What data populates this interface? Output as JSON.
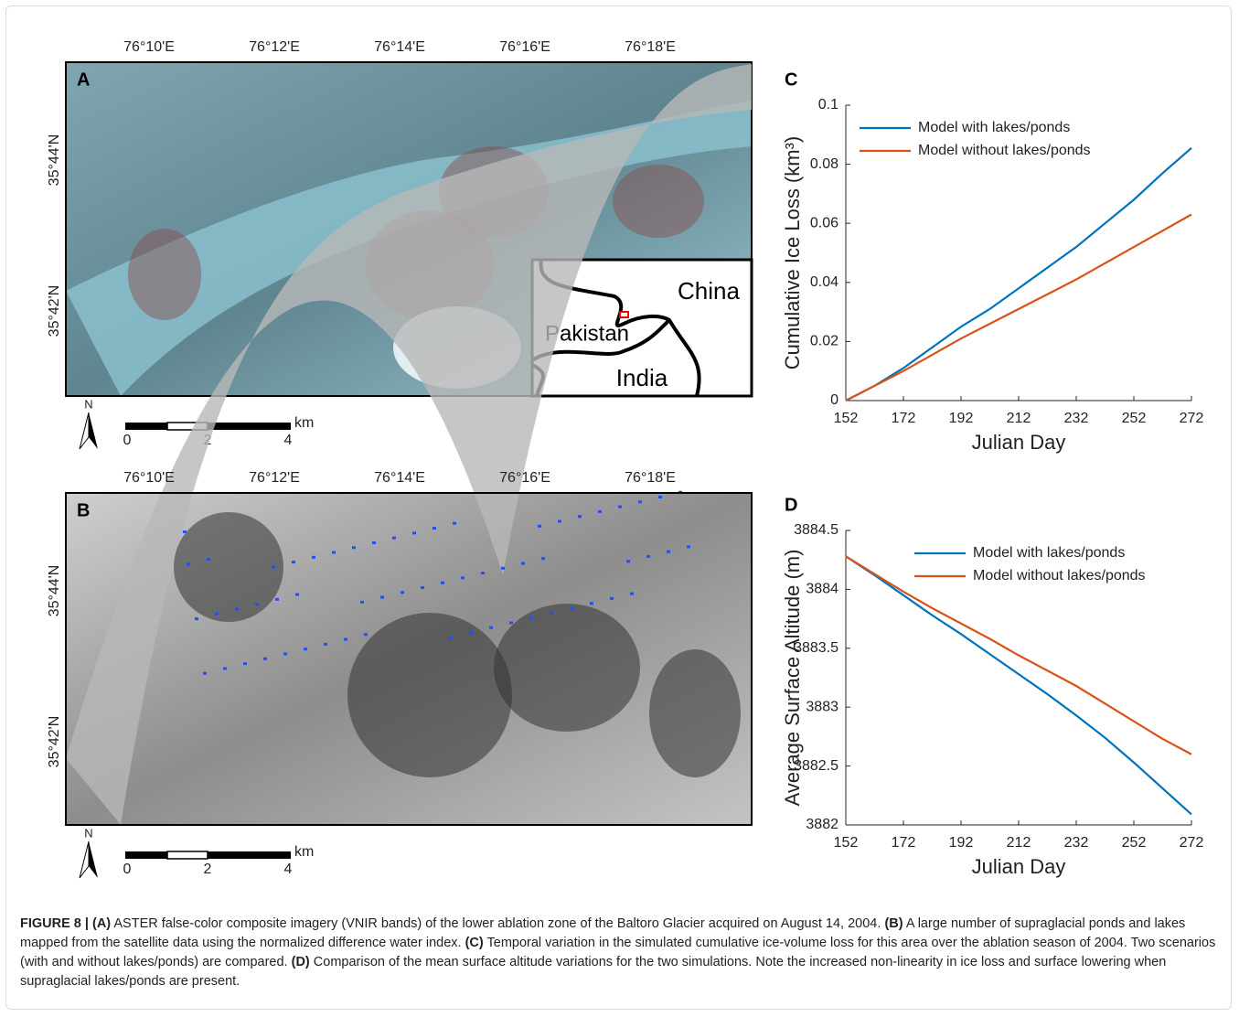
{
  "maps": [
    {
      "panel": "A",
      "lon_labels": [
        "76°10'E",
        "76°12'E",
        "76°14'E",
        "76°16'E",
        "76°18'E"
      ],
      "lat_labels": [
        "35°44'N",
        "35°42'N"
      ],
      "north": "N",
      "scale_labels": [
        "0",
        "2",
        "4"
      ],
      "scale_unit": "km",
      "inset_labels": [
        "China",
        "Pakistan",
        "India"
      ]
    },
    {
      "panel": "B",
      "lon_labels": [
        "76°10'E",
        "76°12'E",
        "76°14'E",
        "76°16'E",
        "76°18'E"
      ],
      "lat_labels": [
        "35°44'N",
        "35°42'N"
      ],
      "north": "N",
      "scale_labels": [
        "0",
        "2",
        "4"
      ],
      "scale_unit": "km"
    }
  ],
  "chart_data": [
    {
      "type": "line",
      "panel": "C",
      "x_label": "Julian Day",
      "y_label": "Cumulative Ice Loss (km³)",
      "x": [
        152,
        162,
        172,
        182,
        192,
        202,
        212,
        222,
        232,
        242,
        252,
        262,
        272
      ],
      "xlim": [
        152,
        272
      ],
      "xticks": [
        152,
        172,
        192,
        212,
        232,
        252,
        272
      ],
      "ylim": [
        0,
        0.1
      ],
      "yticks": [
        0,
        0.02,
        0.04,
        0.06,
        0.08,
        0.1
      ],
      "legend": "upper left",
      "series": [
        {
          "name": "Model with lakes/ponds",
          "color": "#0072bd",
          "values": [
            0,
            0.005,
            0.011,
            0.018,
            0.025,
            0.031,
            0.038,
            0.045,
            0.052,
            0.06,
            0.068,
            0.077,
            0.0855
          ]
        },
        {
          "name": "Model without lakes/ponds",
          "color": "#d95319",
          "values": [
            0,
            0.005,
            0.01,
            0.0155,
            0.021,
            0.026,
            0.031,
            0.036,
            0.041,
            0.0465,
            0.052,
            0.0575,
            0.063
          ]
        }
      ]
    },
    {
      "type": "line",
      "panel": "D",
      "x_label": "Julian Day",
      "y_label": "Average Surface Altitude (m)",
      "x": [
        152,
        162,
        172,
        182,
        192,
        202,
        212,
        222,
        232,
        242,
        252,
        262,
        272
      ],
      "xlim": [
        152,
        272
      ],
      "xticks": [
        152,
        172,
        192,
        212,
        232,
        252,
        272
      ],
      "ylim": [
        3882,
        3884.5
      ],
      "yticks": [
        3882,
        3882.5,
        3883,
        3883.5,
        3884,
        3884.5
      ],
      "legend": "upper right",
      "series": [
        {
          "name": "Model with lakes/ponds",
          "color": "#0072bd",
          "values": [
            3884.28,
            3884.12,
            3883.95,
            3883.78,
            3883.62,
            3883.45,
            3883.28,
            3883.11,
            3882.93,
            3882.74,
            3882.53,
            3882.31,
            3882.09
          ]
        },
        {
          "name": "Model without lakes/ponds",
          "color": "#d95319",
          "values": [
            3884.28,
            3884.13,
            3883.98,
            3883.84,
            3883.71,
            3883.58,
            3883.44,
            3883.31,
            3883.18,
            3883.03,
            3882.88,
            3882.73,
            3882.6
          ]
        }
      ]
    }
  ],
  "caption": {
    "figure_label": "FIGURE 8 |",
    "items": [
      {
        "label": "(A)",
        "text": "ASTER false-color composite imagery (VNIR bands) of the lower ablation zone of the Baltoro Glacier acquired on August 14, 2004."
      },
      {
        "label": "(B)",
        "text": "A large number of supraglacial ponds and lakes mapped from the satellite data using the normalized difference water index."
      },
      {
        "label": "(C)",
        "text": "Temporal variation in the simulated cumulative ice-volume loss for this area over the ablation season of 2004. Two scenarios (with and without lakes/ponds) are compared."
      },
      {
        "label": "(D)",
        "text": "Comparison of the mean surface altitude variations for the two simulations. Note the increased non-linearity in ice loss and surface lowering when supraglacial lakes/ponds are present."
      }
    ]
  }
}
